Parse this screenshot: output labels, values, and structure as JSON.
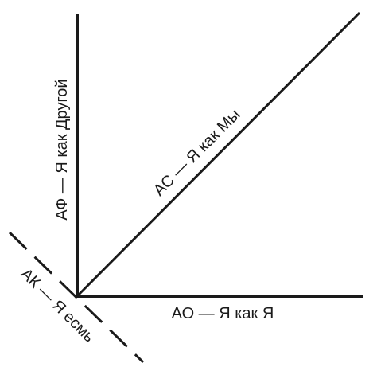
{
  "diagram": {
    "labels": {
      "vertical_axis": "АФ — Я как Другой",
      "horizontal_axis": "АО — Я как Я",
      "diagonal": "АС — Я как Мы",
      "dashed": "АК — Я есмь"
    }
  }
}
